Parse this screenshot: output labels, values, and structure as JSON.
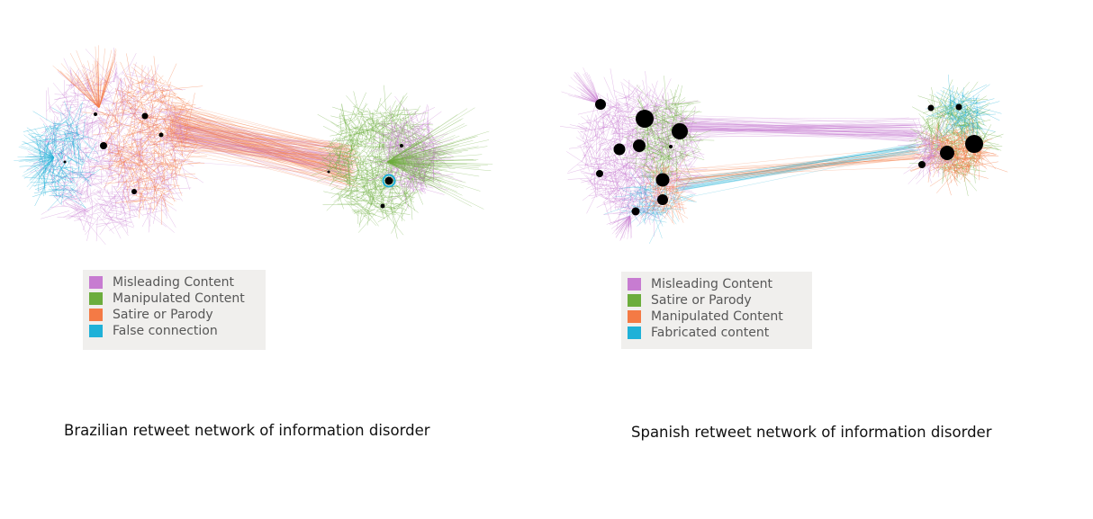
{
  "colors": {
    "misleading": "#c77cd1",
    "manipulated": "#6cad3c",
    "satire": "#f47a45",
    "false_connection": "#1fb1d8",
    "fabricated": "#1fb1d8",
    "hub": "#000000",
    "legend_bg": "#f0efed"
  },
  "left": {
    "caption": "Brazilian retweet network of information disorder",
    "legend": [
      {
        "label": "Misleading Content",
        "color": "#c77cd1"
      },
      {
        "label": "Manipulated Content",
        "color": "#6cad3c"
      },
      {
        "label": "Satire or Parody",
        "color": "#f47a45"
      },
      {
        "label": "False connection",
        "color": "#1fb1d8"
      }
    ]
  },
  "right": {
    "caption": "Spanish retweet network of information disorder",
    "legend": [
      {
        "label": "Misleading Content",
        "color": "#c77cd1"
      },
      {
        "label": "Satire or Parody",
        "color": "#6cad3c"
      },
      {
        "label": "Manipulated Content",
        "color": "#f47a45"
      },
      {
        "label": "Fabricated content",
        "color": "#1fb1d8"
      }
    ]
  }
}
